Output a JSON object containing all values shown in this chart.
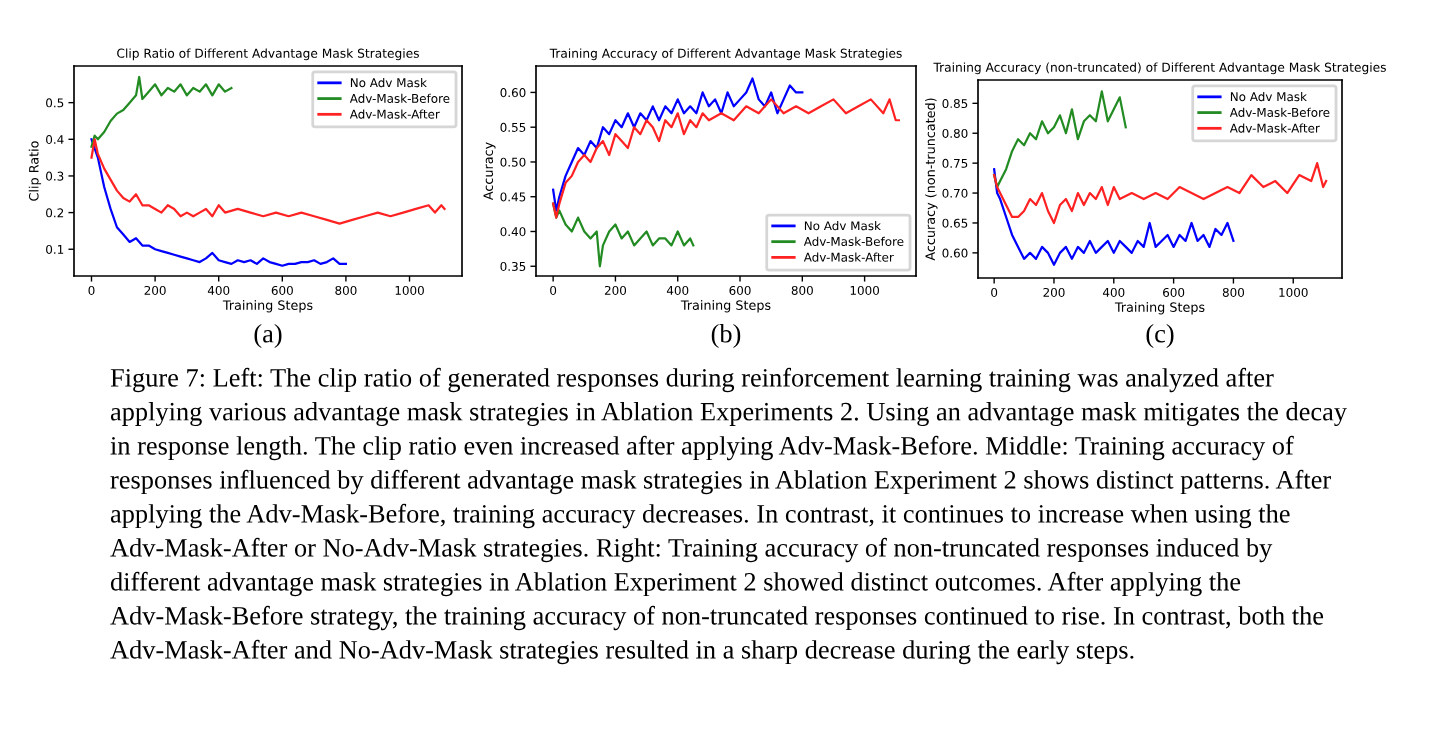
{
  "chart_data": [
    {
      "type": "line",
      "title": "Clip Ratio of Different Advantage Mask Strategies",
      "xlabel": "Training Steps",
      "ylabel": "Clip Ratio",
      "annotations": [
        "(a)"
      ],
      "xlim": [
        -55,
        1165
      ],
      "xticks": [
        0,
        200,
        400,
        600,
        800,
        1000
      ],
      "ylim": [
        0.027,
        0.6
      ],
      "yticks": [
        0.1,
        0.2,
        0.3,
        0.4,
        0.5
      ],
      "legend": "top right",
      "grid": false,
      "series": [
        {
          "name": "No Adv Mask",
          "color": "#0000ff",
          "x": [
            0,
            20,
            40,
            50,
            60,
            80,
            100,
            120,
            140,
            160,
            180,
            200,
            220,
            240,
            260,
            280,
            300,
            320,
            340,
            360,
            380,
            400,
            420,
            440,
            460,
            480,
            500,
            520,
            540,
            560,
            580,
            600,
            620,
            640,
            660,
            680,
            700,
            720,
            740,
            760,
            780,
            800
          ],
          "values": [
            0.4,
            0.35,
            0.27,
            0.24,
            0.21,
            0.16,
            0.14,
            0.12,
            0.13,
            0.11,
            0.11,
            0.1,
            0.095,
            0.09,
            0.085,
            0.08,
            0.075,
            0.07,
            0.065,
            0.075,
            0.09,
            0.07,
            0.065,
            0.06,
            0.07,
            0.065,
            0.07,
            0.06,
            0.075,
            0.065,
            0.06,
            0.055,
            0.06,
            0.06,
            0.065,
            0.065,
            0.07,
            0.06,
            0.065,
            0.075,
            0.06,
            0.06
          ]
        },
        {
          "name": "Adv-Mask-Before",
          "color": "#228b22",
          "x": [
            0,
            10,
            20,
            40,
            60,
            80,
            100,
            120,
            140,
            150,
            160,
            180,
            200,
            220,
            240,
            260,
            280,
            300,
            320,
            340,
            360,
            380,
            400,
            420,
            440
          ],
          "values": [
            0.38,
            0.41,
            0.4,
            0.42,
            0.45,
            0.47,
            0.48,
            0.5,
            0.52,
            0.57,
            0.51,
            0.53,
            0.55,
            0.52,
            0.54,
            0.53,
            0.55,
            0.52,
            0.54,
            0.53,
            0.55,
            0.52,
            0.55,
            0.53,
            0.54
          ]
        },
        {
          "name": "Adv-Mask-After",
          "color": "#ff2222",
          "x": [
            0,
            10,
            20,
            40,
            60,
            80,
            100,
            120,
            140,
            160,
            180,
            200,
            220,
            240,
            260,
            280,
            300,
            320,
            340,
            360,
            380,
            400,
            420,
            460,
            500,
            540,
            580,
            620,
            660,
            700,
            740,
            780,
            820,
            860,
            900,
            940,
            980,
            1020,
            1060,
            1080,
            1100,
            1110
          ],
          "values": [
            0.35,
            0.4,
            0.36,
            0.32,
            0.29,
            0.26,
            0.24,
            0.23,
            0.25,
            0.22,
            0.22,
            0.21,
            0.2,
            0.22,
            0.21,
            0.19,
            0.2,
            0.19,
            0.2,
            0.21,
            0.19,
            0.22,
            0.2,
            0.21,
            0.2,
            0.19,
            0.2,
            0.19,
            0.2,
            0.19,
            0.18,
            0.17,
            0.18,
            0.19,
            0.2,
            0.19,
            0.2,
            0.21,
            0.22,
            0.2,
            0.22,
            0.21
          ]
        }
      ]
    },
    {
      "type": "line",
      "title": "Training Accuracy of Different Advantage Mask Strategies",
      "xlabel": "Training Steps",
      "ylabel": "Accuracy",
      "annotations": [
        "(b)"
      ],
      "xlim": [
        -55,
        1165
      ],
      "xticks": [
        0,
        200,
        400,
        600,
        800,
        1000
      ],
      "ylim": [
        0.336,
        0.638
      ],
      "yticks": [
        0.35,
        {
          "value": 0.4,
          "label": "0.40"
        },
        0.45,
        {
          "value": 0.5,
          "label": "0.50"
        },
        0.55,
        {
          "value": 0.6,
          "label": "0.60"
        }
      ],
      "legend": "bottom right",
      "grid": false,
      "series": [
        {
          "name": "No Adv Mask",
          "color": "#0000ff",
          "x": [
            0,
            10,
            20,
            40,
            60,
            80,
            100,
            120,
            140,
            160,
            180,
            200,
            220,
            240,
            260,
            280,
            300,
            320,
            340,
            360,
            380,
            400,
            420,
            440,
            460,
            480,
            500,
            520,
            540,
            560,
            580,
            600,
            620,
            640,
            660,
            680,
            700,
            720,
            740,
            760,
            780,
            800
          ],
          "values": [
            0.46,
            0.43,
            0.45,
            0.48,
            0.5,
            0.52,
            0.51,
            0.53,
            0.52,
            0.55,
            0.54,
            0.56,
            0.55,
            0.57,
            0.55,
            0.57,
            0.56,
            0.58,
            0.56,
            0.58,
            0.57,
            0.59,
            0.57,
            0.58,
            0.57,
            0.6,
            0.58,
            0.59,
            0.57,
            0.6,
            0.58,
            0.59,
            0.6,
            0.62,
            0.59,
            0.58,
            0.6,
            0.57,
            0.59,
            0.61,
            0.6,
            0.6
          ]
        },
        {
          "name": "Adv-Mask-Before",
          "color": "#228b22",
          "x": [
            0,
            10,
            20,
            40,
            60,
            80,
            100,
            120,
            140,
            150,
            160,
            180,
            200,
            220,
            240,
            260,
            280,
            300,
            320,
            340,
            360,
            380,
            400,
            420,
            440,
            450
          ],
          "values": [
            0.44,
            0.42,
            0.43,
            0.41,
            0.4,
            0.42,
            0.4,
            0.39,
            0.4,
            0.35,
            0.38,
            0.4,
            0.41,
            0.39,
            0.4,
            0.38,
            0.39,
            0.4,
            0.38,
            0.39,
            0.39,
            0.38,
            0.4,
            0.38,
            0.39,
            0.38
          ]
        },
        {
          "name": "Adv-Mask-After",
          "color": "#ff2222",
          "x": [
            0,
            10,
            20,
            40,
            60,
            80,
            100,
            120,
            140,
            160,
            180,
            200,
            220,
            240,
            260,
            280,
            300,
            320,
            340,
            360,
            380,
            400,
            420,
            440,
            460,
            480,
            500,
            540,
            580,
            620,
            660,
            700,
            740,
            780,
            820,
            860,
            900,
            940,
            980,
            1020,
            1060,
            1080,
            1100,
            1110
          ],
          "values": [
            0.44,
            0.42,
            0.44,
            0.47,
            0.48,
            0.5,
            0.51,
            0.5,
            0.52,
            0.53,
            0.51,
            0.54,
            0.53,
            0.52,
            0.55,
            0.54,
            0.56,
            0.55,
            0.53,
            0.56,
            0.55,
            0.57,
            0.54,
            0.56,
            0.55,
            0.57,
            0.56,
            0.57,
            0.56,
            0.58,
            0.57,
            0.59,
            0.57,
            0.58,
            0.57,
            0.58,
            0.59,
            0.57,
            0.58,
            0.59,
            0.57,
            0.59,
            0.56,
            0.56
          ]
        }
      ]
    },
    {
      "type": "line",
      "title": "Training Accuracy (non-truncated) of Different Advantage Mask Strategies",
      "xlabel": "Training Steps",
      "ylabel": "Accuracy (non-truncated)",
      "annotations": [
        "(c)",
        "Figure 7: Left: The clip ratio of generated responses during reinforcement learning training was analyzed after applying various advantage mask strategies in Ablation Experiments 2. Using an advantage mask mitigates the decay in response length. The clip ratio even increased after applying Adv-Mask-Before. Middle: Training accuracy of responses influenced by different advantage mask strategies in Ablation Experiment 2 shows distinct patterns. After applying the Adv-Mask-Before, training accuracy decreases. In contrast, it continues to increase when using the Adv-Mask-After or No-Adv-Mask strategies. Right: Training accuracy of non-truncated responses induced by different advantage mask strategies in Ablation Experiment 2 showed distinct outcomes. After applying the Adv-Mask-Before strategy, the training accuracy of non-truncated responses continued to rise. In contrast, both the Adv-Mask-After and No-Adv-Mask strategies resulted in a sharp decrease during the early steps."
      ],
      "xlim": [
        -54,
        1163
      ],
      "xticks": [
        0,
        200,
        400,
        600,
        800,
        1000
      ],
      "ylim": [
        0.558,
        0.889
      ],
      "yticks": [
        {
          "value": 0.6,
          "label": "0.60"
        },
        0.65,
        {
          "value": 0.7,
          "label": "0.70"
        },
        0.75,
        {
          "value": 0.8,
          "label": "0.80"
        },
        0.85
      ],
      "legend": "top right",
      "grid": false,
      "series": [
        {
          "name": "No Adv Mask",
          "color": "#0000ff",
          "x": [
            0,
            10,
            20,
            40,
            60,
            80,
            100,
            120,
            140,
            160,
            180,
            200,
            220,
            240,
            260,
            280,
            300,
            320,
            340,
            360,
            380,
            400,
            420,
            440,
            460,
            480,
            500,
            520,
            540,
            560,
            580,
            600,
            620,
            640,
            660,
            680,
            700,
            720,
            740,
            760,
            780,
            800
          ],
          "values": [
            0.74,
            0.7,
            0.69,
            0.66,
            0.63,
            0.61,
            0.59,
            0.6,
            0.59,
            0.61,
            0.6,
            0.58,
            0.6,
            0.61,
            0.59,
            0.61,
            0.6,
            0.62,
            0.6,
            0.61,
            0.62,
            0.6,
            0.62,
            0.61,
            0.6,
            0.62,
            0.61,
            0.65,
            0.61,
            0.62,
            0.63,
            0.61,
            0.63,
            0.62,
            0.65,
            0.62,
            0.63,
            0.61,
            0.64,
            0.63,
            0.65,
            0.62
          ]
        },
        {
          "name": "Adv-Mask-Before",
          "color": "#228b22",
          "x": [
            0,
            10,
            20,
            40,
            60,
            80,
            100,
            120,
            140,
            160,
            180,
            200,
            220,
            240,
            260,
            280,
            300,
            320,
            340,
            360,
            380,
            400,
            420,
            440
          ],
          "values": [
            0.73,
            0.71,
            0.72,
            0.74,
            0.77,
            0.79,
            0.78,
            0.8,
            0.79,
            0.82,
            0.8,
            0.81,
            0.83,
            0.8,
            0.84,
            0.79,
            0.82,
            0.83,
            0.82,
            0.87,
            0.82,
            0.84,
            0.86,
            0.81
          ]
        },
        {
          "name": "Adv-Mask-After",
          "color": "#ff2222",
          "x": [
            0,
            10,
            20,
            40,
            60,
            80,
            100,
            120,
            140,
            160,
            180,
            200,
            220,
            240,
            260,
            280,
            300,
            320,
            340,
            360,
            380,
            400,
            420,
            460,
            500,
            540,
            580,
            620,
            660,
            700,
            740,
            780,
            820,
            860,
            900,
            940,
            980,
            1020,
            1060,
            1080,
            1100,
            1110
          ],
          "values": [
            0.73,
            0.71,
            0.7,
            0.68,
            0.66,
            0.66,
            0.67,
            0.69,
            0.68,
            0.7,
            0.67,
            0.65,
            0.68,
            0.69,
            0.67,
            0.7,
            0.68,
            0.7,
            0.69,
            0.71,
            0.68,
            0.71,
            0.69,
            0.7,
            0.69,
            0.7,
            0.69,
            0.71,
            0.7,
            0.69,
            0.7,
            0.71,
            0.7,
            0.73,
            0.71,
            0.72,
            0.7,
            0.73,
            0.72,
            0.75,
            0.71,
            0.72
          ]
        }
      ]
    }
  ]
}
